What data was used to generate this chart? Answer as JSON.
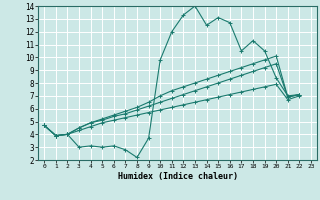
{
  "xlabel": "Humidex (Indice chaleur)",
  "bg_color": "#cce8e6",
  "grid_color": "#ffffff",
  "line_color": "#1a7a6e",
  "xlim": [
    -0.5,
    23.5
  ],
  "ylim": [
    2,
    14
  ],
  "xticks": [
    0,
    1,
    2,
    3,
    4,
    5,
    6,
    7,
    8,
    9,
    10,
    11,
    12,
    13,
    14,
    15,
    16,
    17,
    18,
    19,
    20,
    21,
    22,
    23
  ],
  "yticks": [
    2,
    3,
    4,
    5,
    6,
    7,
    8,
    9,
    10,
    11,
    12,
    13,
    14
  ],
  "series": [
    [
      4.7,
      3.9,
      4.0,
      3.0,
      3.1,
      3.0,
      3.1,
      2.8,
      2.2,
      3.7,
      9.8,
      12.0,
      13.3,
      14.0,
      12.5,
      13.1,
      12.7,
      10.5,
      11.3,
      10.5,
      8.4,
      7.0,
      7.1
    ],
    [
      4.7,
      3.9,
      4.0,
      4.5,
      4.9,
      5.2,
      5.5,
      5.8,
      6.1,
      6.5,
      7.0,
      7.4,
      7.7,
      8.0,
      8.3,
      8.6,
      8.9,
      9.2,
      9.5,
      9.8,
      10.1,
      6.9,
      7.1
    ],
    [
      4.7,
      3.9,
      4.0,
      4.5,
      4.9,
      5.1,
      5.4,
      5.6,
      5.9,
      6.2,
      6.5,
      6.8,
      7.1,
      7.4,
      7.7,
      8.0,
      8.3,
      8.6,
      8.9,
      9.2,
      9.5,
      6.9,
      7.1
    ],
    [
      4.7,
      3.9,
      4.0,
      4.3,
      4.6,
      4.9,
      5.1,
      5.3,
      5.5,
      5.7,
      5.9,
      6.1,
      6.3,
      6.5,
      6.7,
      6.9,
      7.1,
      7.3,
      7.5,
      7.7,
      7.9,
      6.7,
      7.0
    ]
  ]
}
